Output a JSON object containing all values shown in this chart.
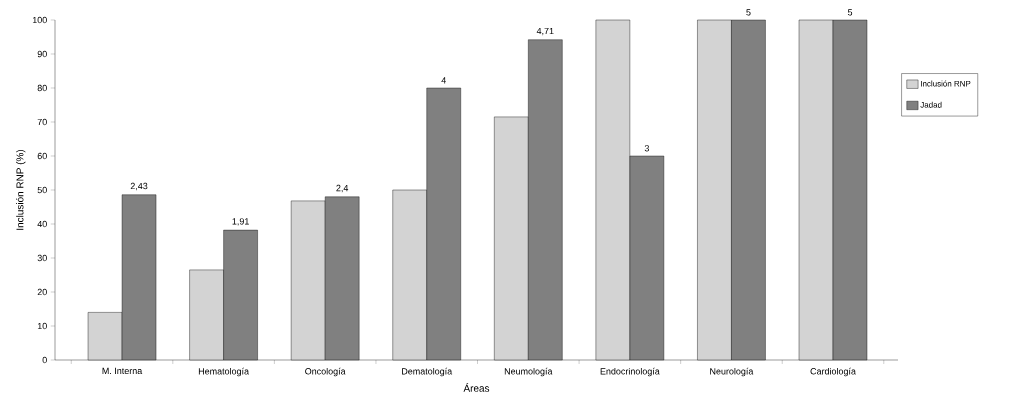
{
  "chart_data": {
    "type": "bar",
    "xlabel": "Áreas",
    "ylabel": "Inclusión RNP (%)",
    "categories": [
      "M. Interna",
      "Hematología",
      "Oncología",
      "Dematología",
      "Neumología",
      "Endocrinología",
      "Neurología",
      "Cardiología"
    ],
    "series": [
      {
        "name": "Inclusión RNP",
        "color": "#d3d3d3",
        "values": [
          14,
          26.5,
          46.8,
          50,
          71.5,
          100,
          100,
          100
        ]
      },
      {
        "name": "Jadad",
        "color": "#808080",
        "axis": "y2",
        "values": [
          2.43,
          1.91,
          2.4,
          4,
          4.71,
          3,
          5,
          5
        ],
        "value_labels": [
          "2,43",
          "1,91",
          "2,4",
          "4",
          "4,71",
          "3",
          "5",
          "5"
        ]
      }
    ],
    "ylim": [
      0,
      100
    ],
    "yticks": [
      0,
      10,
      20,
      30,
      40,
      50,
      60,
      70,
      80,
      90,
      100
    ],
    "y2lim": [
      0,
      5
    ],
    "grid": false,
    "legend": "right"
  }
}
